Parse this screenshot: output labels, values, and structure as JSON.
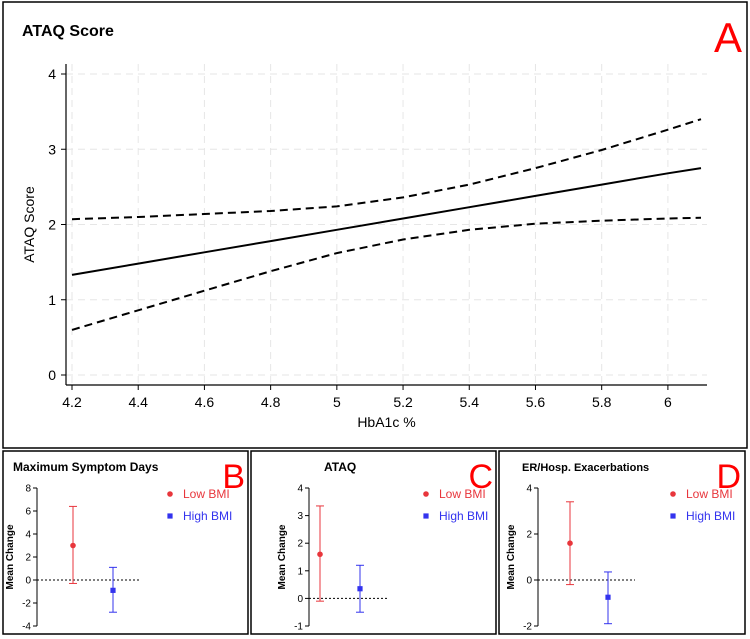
{
  "chart_data": [
    {
      "panel": "A",
      "type": "line",
      "title": "ATAQ Score",
      "xlabel": "HbA1c %",
      "ylabel": "ATAQ Score",
      "xlim": [
        4.2,
        6.1
      ],
      "ylim": [
        0,
        4
      ],
      "x_ticks": [
        "4.2",
        "4.4",
        "4.6",
        "4.8",
        "5",
        "5.2",
        "5.4",
        "5.6",
        "5.8",
        "6"
      ],
      "y_ticks": [
        "0",
        "1",
        "2",
        "3",
        "4"
      ],
      "grid": true,
      "series": [
        {
          "style": "solid",
          "x": [
            4.2,
            4.4,
            4.6,
            4.8,
            5.0,
            5.2,
            5.4,
            5.6,
            5.8,
            6.0,
            6.1
          ],
          "y": [
            1.33,
            1.48,
            1.63,
            1.78,
            1.93,
            2.08,
            2.23,
            2.38,
            2.53,
            2.68,
            2.75
          ]
        },
        {
          "style": "dashed",
          "x": [
            4.2,
            4.4,
            4.6,
            4.8,
            5.0,
            5.2,
            5.4,
            5.6,
            5.8,
            6.0,
            6.1
          ],
          "y": [
            2.07,
            2.1,
            2.14,
            2.18,
            2.24,
            2.36,
            2.53,
            2.75,
            2.99,
            3.26,
            3.4
          ]
        },
        {
          "style": "dashed",
          "x": [
            4.2,
            4.4,
            4.6,
            4.8,
            5.0,
            5.2,
            5.4,
            5.6,
            5.8,
            6.0,
            6.1
          ],
          "y": [
            0.6,
            0.86,
            1.12,
            1.38,
            1.62,
            1.8,
            1.93,
            2.01,
            2.05,
            2.08,
            2.09
          ]
        }
      ]
    },
    {
      "panel": "B",
      "type": "scatter",
      "title": "Maximum Symptom Days",
      "ylabel": "Mean  Change",
      "ylim": [
        -4,
        8
      ],
      "y_ticks": [
        "-4",
        "-2",
        "0",
        "2",
        "4",
        "6",
        "8"
      ],
      "reference_line": 0,
      "series": [
        {
          "name": "Low BMI",
          "color": "#e8363c",
          "marker": "circle",
          "mean": 3.0,
          "lower": -0.3,
          "upper": 6.4
        },
        {
          "name": "High BMI",
          "color": "#3333ee",
          "marker": "square",
          "mean": -0.9,
          "lower": -2.8,
          "upper": 1.1
        }
      ]
    },
    {
      "panel": "C",
      "type": "scatter",
      "title": "ATAQ",
      "ylabel": "Mean  Change",
      "ylim": [
        -1,
        4
      ],
      "y_ticks": [
        "-1",
        "0",
        "1",
        "2",
        "3",
        "4"
      ],
      "reference_line": 0,
      "series": [
        {
          "name": "Low BMI",
          "color": "#e8363c",
          "marker": "circle",
          "mean": 1.6,
          "lower": -0.1,
          "upper": 3.35
        },
        {
          "name": "High BMI",
          "color": "#3333ee",
          "marker": "square",
          "mean": 0.35,
          "lower": -0.5,
          "upper": 1.2
        }
      ]
    },
    {
      "panel": "D",
      "type": "scatter",
      "title": "ER/Hosp.  Exacerbations",
      "ylabel": "Mean  Change",
      "ylim": [
        -2,
        4
      ],
      "y_ticks": [
        "-2",
        "0",
        "2",
        "4"
      ],
      "reference_line": 0,
      "series": [
        {
          "name": "Low BMI",
          "color": "#e8363c",
          "marker": "circle",
          "mean": 1.6,
          "lower": -0.2,
          "upper": 3.4
        },
        {
          "name": "High BMI",
          "color": "#3333ee",
          "marker": "square",
          "mean": -0.75,
          "lower": -1.9,
          "upper": 0.35
        }
      ]
    }
  ]
}
